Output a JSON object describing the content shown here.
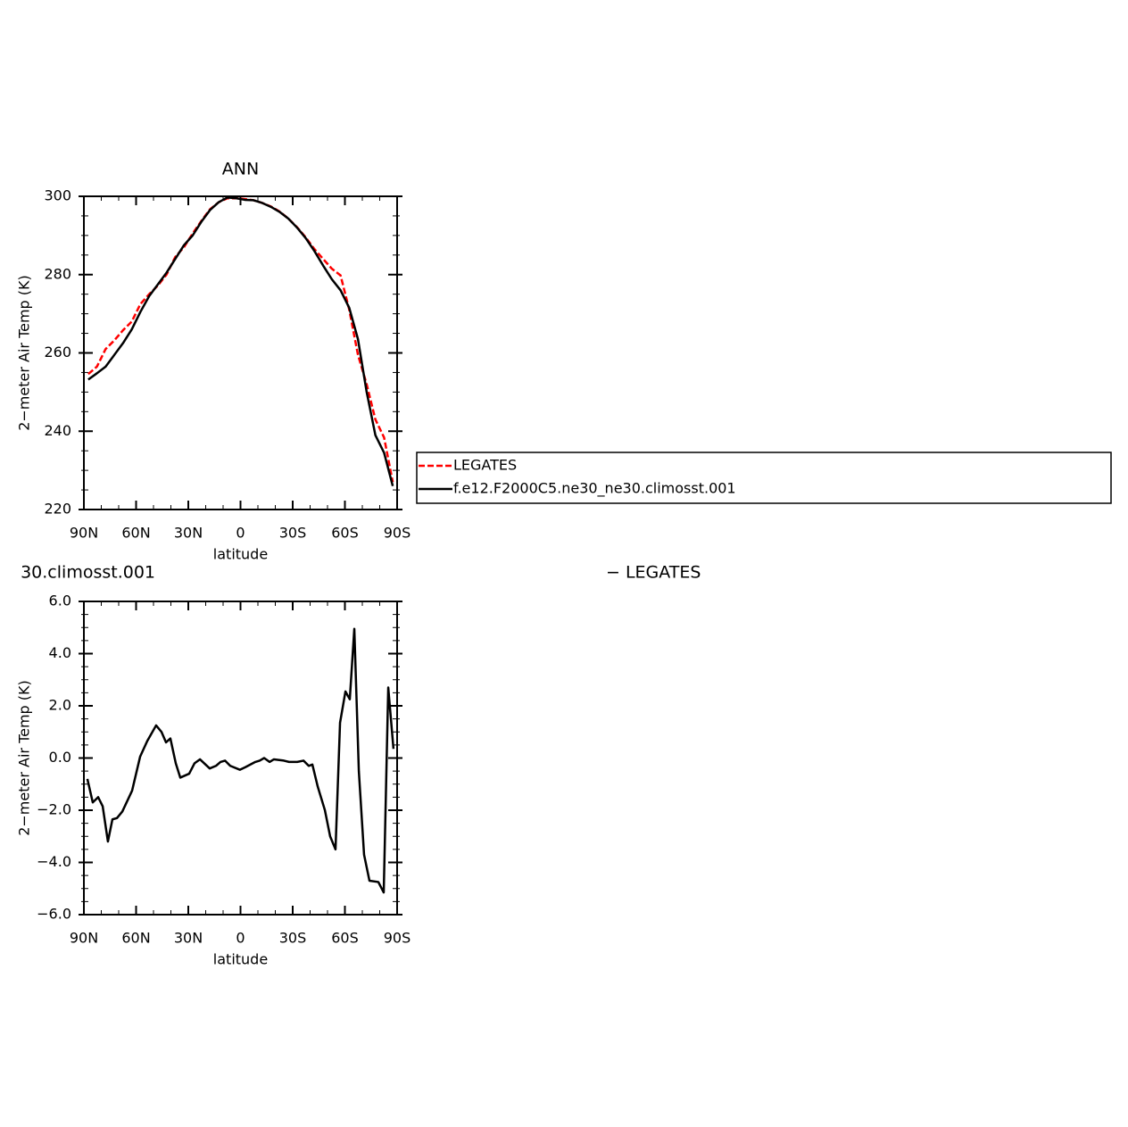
{
  "chart_data": [
    {
      "type": "line",
      "title": "ANN",
      "x_label": "latitude",
      "y_label": "2−meter Air Temp (K)",
      "x": [
        87.5,
        82.5,
        77.5,
        72.5,
        67.5,
        62.5,
        57.5,
        52.5,
        47.5,
        42.5,
        37.5,
        32.5,
        27.5,
        22.5,
        17.5,
        12.5,
        7.5,
        2.5,
        -2.5,
        -7.5,
        -12.5,
        -17.5,
        -22.5,
        -27.5,
        -32.5,
        -37.5,
        -42.5,
        -47.5,
        -52.5,
        -57.5,
        -62.5,
        -67.5,
        -72.5,
        -77.5,
        -82.5,
        -87.5
      ],
      "xlim": [
        90,
        -90
      ],
      "xticks": [
        {
          "value": 90,
          "label": "90N"
        },
        {
          "value": 60,
          "label": "60N"
        },
        {
          "value": 30,
          "label": "30N"
        },
        0,
        {
          "value": -30,
          "label": "30S"
        },
        {
          "value": -60,
          "label": "60S"
        },
        {
          "value": -90,
          "label": "90S"
        }
      ],
      "ylim": [
        220,
        300
      ],
      "yticks": [
        220,
        240,
        260,
        280,
        300
      ],
      "legend": "right",
      "series": [
        {
          "name": "LEGATES",
          "color": "#ff0000",
          "dashed": true,
          "values": [
            254.6,
            256.5,
            261,
            263.2,
            265.8,
            268,
            272.5,
            275,
            277.2,
            280,
            284.5,
            287,
            290.5,
            293.7,
            296.7,
            298.5,
            299.5,
            299.5,
            299.3,
            299.0,
            298.3,
            297.4,
            296.1,
            294.3,
            292.1,
            289.5,
            286.5,
            284,
            281.5,
            279.8,
            271,
            259.5,
            252,
            243,
            238.4,
            227
          ]
        },
        {
          "name": "f.e12.F2000C5.ne30_ne30.climosst.001",
          "color": "#000000",
          "dashed": false,
          "values": [
            253.2,
            254.8,
            256.5,
            259.5,
            262.5,
            266,
            270.5,
            274.5,
            277.5,
            280.5,
            284,
            287.5,
            290,
            293.5,
            296.5,
            298.5,
            299.7,
            299.5,
            299.1,
            299.0,
            298.3,
            297.3,
            296,
            294.3,
            292,
            289.3,
            286,
            282.3,
            278.8,
            276,
            271.5,
            263.5,
            250,
            239,
            234.5,
            226
          ]
        }
      ]
    },
    {
      "type": "line",
      "title": "30.climosst.001",
      "subtitle": "−  LEGATES",
      "x_label": "latitude",
      "y_label": "2−meter Air Temp (K)",
      "x": [
        88.0,
        84.9,
        81.8,
        79.2,
        76.2,
        73.6,
        71.0,
        67.9,
        62.3,
        57.7,
        53.6,
        48.5,
        45.4,
        42.8,
        40.3,
        37.2,
        34.6,
        29.5,
        26.4,
        23.3,
        17.7,
        14.1,
        11.5,
        8.9,
        5.9,
        0.3,
        -2.8,
        -8.5,
        -11.0,
        -13.6,
        -16.7,
        -19.2,
        -24.9,
        -27.9,
        -32.6,
        -36.2,
        -39.2,
        -41.3,
        -44.4,
        -48.5,
        -51.5,
        -54.6,
        -57.2,
        -60.3,
        -62.8,
        -65.4,
        -68.0,
        -71.0,
        -74.1,
        -79.2,
        -82.3,
        -84.9,
        -87.9
      ],
      "xlim": [
        90,
        -90
      ],
      "xticks": [
        {
          "value": 90,
          "label": "90N"
        },
        {
          "value": 60,
          "label": "60N"
        },
        {
          "value": 30,
          "label": "30N"
        },
        0,
        {
          "value": -30,
          "label": "30S"
        },
        {
          "value": -60,
          "label": "60S"
        },
        {
          "value": -90,
          "label": "90S"
        }
      ],
      "ylim": [
        -6,
        6
      ],
      "yticks": [
        {
          "value": -6,
          "label": "−6.0"
        },
        {
          "value": -4,
          "label": "−4.0"
        },
        {
          "value": -2,
          "label": "−2.0"
        },
        {
          "value": 0,
          "label": "0.0"
        },
        {
          "value": 2,
          "label": "2.0"
        },
        {
          "value": 4,
          "label": "4.0"
        },
        {
          "value": 6,
          "label": "6.0"
        }
      ],
      "series": [
        {
          "color": "#000000",
          "dashed": false,
          "values": [
            -0.8,
            -1.7,
            -1.5,
            -1.85,
            -3.2,
            -2.35,
            -2.3,
            -2.05,
            -1.25,
            0.05,
            0.65,
            1.25,
            1.0,
            0.6,
            0.75,
            -0.2,
            -0.75,
            -0.6,
            -0.2,
            -0.05,
            -0.4,
            -0.3,
            -0.15,
            -0.1,
            -0.3,
            -0.45,
            -0.35,
            -0.15,
            -0.1,
            0.0,
            -0.15,
            -0.05,
            -0.1,
            -0.15,
            -0.15,
            -0.1,
            -0.3,
            -0.25,
            -1.1,
            -2.0,
            -3.0,
            -3.5,
            1.35,
            2.55,
            2.25,
            4.95,
            -0.5,
            -3.7,
            -4.7,
            -4.75,
            -5.15,
            2.7,
            0.35
          ]
        }
      ]
    }
  ]
}
